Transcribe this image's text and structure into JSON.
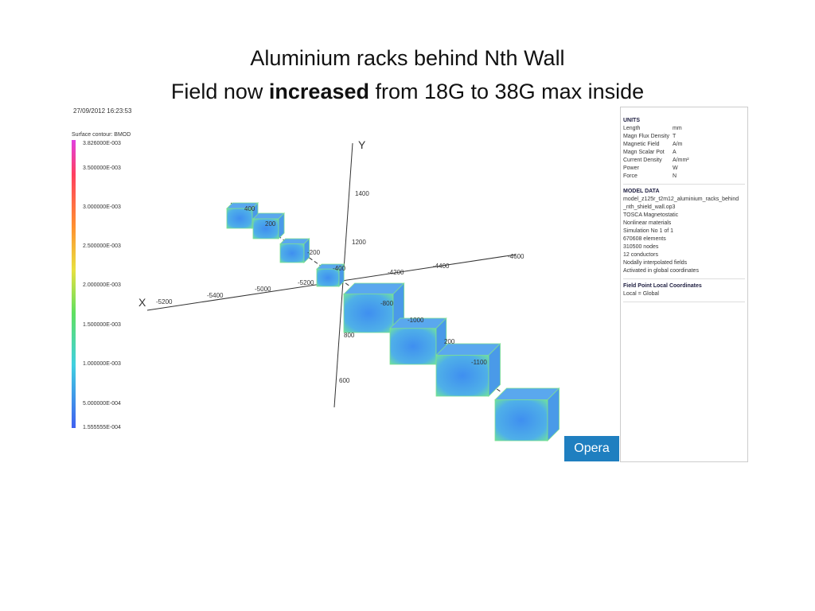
{
  "title": {
    "line1": "Aluminium racks behind Nth Wall",
    "line2_before": "Field now",
    "line2_bold": "increased",
    "line2_after": "from 18G to 38G max inside"
  },
  "viewer": {
    "timestamp": "27/09/2012 16:23:53",
    "legend_title": "Surface contour: BMOD",
    "legend_labels": [
      "3.826000E-003",
      "3.500000E-003",
      "3.000000E-003",
      "2.500000E-003",
      "2.000000E-003",
      "1.500000E-003",
      "1.000000E-003",
      "5.000000E-004",
      "1.555555E-004"
    ],
    "axis_labels": {
      "y": "Y",
      "x": "X"
    },
    "tick_labels": [
      "1400",
      "1200",
      "800",
      "600",
      "-5200",
      "-5400",
      "-5000",
      "-5200",
      "-4200",
      "-4400",
      "-4600",
      "400",
      "200",
      "-200",
      "-400",
      "-800",
      "-1000",
      "200",
      "-1100"
    ],
    "units": {
      "heading": "UNITS",
      "rows": [
        [
          "Length",
          "mm"
        ],
        [
          "Magn Flux Density",
          "T"
        ],
        [
          "Magnetic Field",
          "A/m"
        ],
        [
          "Magn Scalar Pot",
          "A"
        ],
        [
          "Current Density",
          "A/mm²"
        ],
        [
          "Power",
          "W"
        ],
        [
          "Force",
          "N"
        ]
      ]
    },
    "model": {
      "heading": "MODEL DATA",
      "lines": [
        "model_z125r_t2m12_aluminium_racks_behind",
        "_nth_shield_wall.op3",
        "TOSCA Magnetostatic",
        "Nonlinear materials",
        "Simulation No 1 of 1",
        "670608 elements",
        "310500 nodes",
        "12 conductors",
        "Nodally interpolated fields",
        "Activated in global coordinates"
      ]
    },
    "field_point": {
      "heading": "Field Point Local Coordinates",
      "line": "Local = Global"
    },
    "logo": "Opera"
  }
}
